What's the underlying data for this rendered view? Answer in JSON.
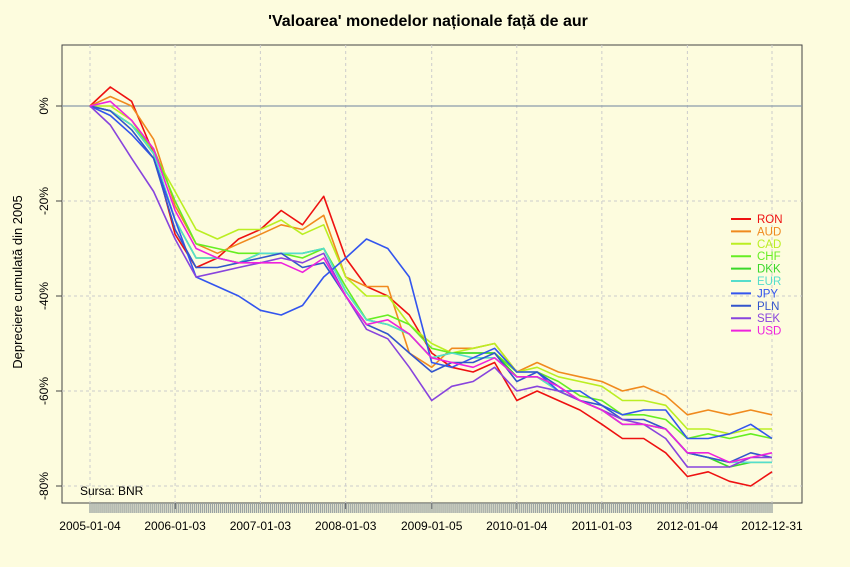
{
  "chart_data": {
    "type": "line",
    "title": "'Valoarea' monedelor naționale față de aur",
    "xlabel": "",
    "ylabel": "Depreciere cumulată din 2005",
    "ylim": [
      -82,
      12
    ],
    "y_ticks": [
      {
        "value": 0,
        "label": "0%"
      },
      {
        "value": -20,
        "label": "-20%"
      },
      {
        "value": -40,
        "label": "-40%"
      },
      {
        "value": -60,
        "label": "-60%"
      },
      {
        "value": -80,
        "label": "-80%"
      }
    ],
    "x_ticks": [
      "2005-01-04",
      "2006-01-03",
      "2007-01-03",
      "2008-01-03",
      "2009-01-05",
      "2010-01-04",
      "2011-01-03",
      "2012-01-04",
      "2012-12-31"
    ],
    "grid": true,
    "legend_position": "right",
    "annotation": "Sursa: BNR",
    "x": [
      "2005-01-04",
      "2005-04-01",
      "2005-07-01",
      "2005-10-03",
      "2006-01-03",
      "2006-04-03",
      "2006-07-03",
      "2006-10-02",
      "2007-01-03",
      "2007-04-02",
      "2007-07-02",
      "2007-10-01",
      "2008-01-03",
      "2008-04-01",
      "2008-07-01",
      "2008-10-01",
      "2009-01-05",
      "2009-04-01",
      "2009-07-01",
      "2009-10-01",
      "2010-01-04",
      "2010-04-01",
      "2010-07-01",
      "2010-10-01",
      "2011-01-03",
      "2011-04-01",
      "2011-07-01",
      "2011-10-03",
      "2012-01-04",
      "2012-04-02",
      "2012-07-02",
      "2012-10-01",
      "2012-12-31"
    ],
    "series": [
      {
        "name": "RON",
        "color": "#ee1111",
        "values": [
          0,
          4,
          1,
          -10,
          -27,
          -34,
          -32,
          -28,
          -26,
          -22,
          -25,
          -19,
          -32,
          -38,
          -40,
          -44,
          -52,
          -55,
          -56,
          -54,
          -62,
          -60,
          -62,
          -64,
          -67,
          -70,
          -70,
          -73,
          -78,
          -77,
          -79,
          -80,
          -77
        ]
      },
      {
        "name": "AUD",
        "color": "#f08a1e",
        "values": [
          0,
          2,
          0,
          -7,
          -21,
          -29,
          -31,
          -29,
          -27,
          -25,
          -26,
          -23,
          -36,
          -38,
          -38,
          -52,
          -55,
          -51,
          -51,
          -50,
          -56,
          -54,
          -56,
          -57,
          -58,
          -60,
          -59,
          -61,
          -65,
          -64,
          -65,
          -64,
          -65
        ]
      },
      {
        "name": "CAD",
        "color": "#bbee22",
        "values": [
          0,
          0,
          -3,
          -10,
          -18,
          -26,
          -28,
          -26,
          -26,
          -24,
          -27,
          -25,
          -36,
          -40,
          -40,
          -46,
          -50,
          -52,
          -51,
          -50,
          -56,
          -55,
          -57,
          -58,
          -59,
          -62,
          -62,
          -63,
          -68,
          -68,
          -69,
          -68,
          -68
        ]
      },
      {
        "name": "CHF",
        "color": "#66ee22",
        "values": [
          0,
          -1,
          -4,
          -9,
          -20,
          -29,
          -30,
          -31,
          -31,
          -31,
          -32,
          -30,
          -38,
          -45,
          -44,
          -46,
          -51,
          -52,
          -52,
          -52,
          -56,
          -56,
          -58,
          -61,
          -62,
          -65,
          -65,
          -66,
          -70,
          -69,
          -70,
          -69,
          -70
        ]
      },
      {
        "name": "DKK",
        "color": "#3ad82a",
        "values": [
          0,
          -1,
          -4,
          -10,
          -24,
          -32,
          -32,
          -33,
          -31,
          -31,
          -31,
          -30,
          -39,
          -45,
          -46,
          -48,
          -53,
          -52,
          -52,
          -52,
          -57,
          -57,
          -60,
          -62,
          -64,
          -67,
          -67,
          -68,
          -73,
          -74,
          -76,
          -75,
          -75
        ]
      },
      {
        "name": "EUR",
        "color": "#55ddcc",
        "values": [
          0,
          -1,
          -4,
          -10,
          -24,
          -32,
          -32,
          -33,
          -31,
          -31,
          -31,
          -30,
          -39,
          -45,
          -46,
          -48,
          -53,
          -52,
          -53,
          -53,
          -57,
          -57,
          -60,
          -62,
          -64,
          -67,
          -67,
          -68,
          -73,
          -74,
          -75,
          -75,
          -75
        ]
      },
      {
        "name": "JPY",
        "color": "#3355ee",
        "values": [
          0,
          -2,
          -6,
          -11,
          -24,
          -36,
          -38,
          -40,
          -43,
          -44,
          -42,
          -36,
          -32,
          -28,
          -30,
          -36,
          -54,
          -55,
          -53,
          -51,
          -56,
          -56,
          -60,
          -60,
          -63,
          -65,
          -64,
          -64,
          -70,
          -70,
          -69,
          -67,
          -70
        ]
      },
      {
        "name": "PLN",
        "color": "#3355cc",
        "values": [
          0,
          -1,
          -5,
          -11,
          -26,
          -34,
          -34,
          -33,
          -32,
          -31,
          -34,
          -33,
          -40,
          -46,
          -48,
          -52,
          -56,
          -54,
          -54,
          -52,
          -58,
          -56,
          -59,
          -62,
          -63,
          -66,
          -66,
          -68,
          -73,
          -74,
          -75,
          -73,
          -74
        ]
      },
      {
        "name": "SEK",
        "color": "#8844dd",
        "values": [
          0,
          -4,
          -11,
          -18,
          -28,
          -36,
          -35,
          -34,
          -33,
          -32,
          -33,
          -31,
          -40,
          -47,
          -49,
          -55,
          -62,
          -59,
          -58,
          -55,
          -60,
          -59,
          -60,
          -62,
          -64,
          -66,
          -67,
          -70,
          -76,
          -76,
          -76,
          -74,
          -74
        ]
      },
      {
        "name": "USD",
        "color": "#ee22dd",
        "values": [
          0,
          1,
          -3,
          -9,
          -22,
          -30,
          -32,
          -33,
          -33,
          -33,
          -35,
          -32,
          -40,
          -46,
          -45,
          -48,
          -53,
          -54,
          -55,
          -53,
          -57,
          -57,
          -59,
          -62,
          -64,
          -67,
          -67,
          -68,
          -73,
          -73,
          -75,
          -74,
          -73
        ]
      }
    ]
  }
}
